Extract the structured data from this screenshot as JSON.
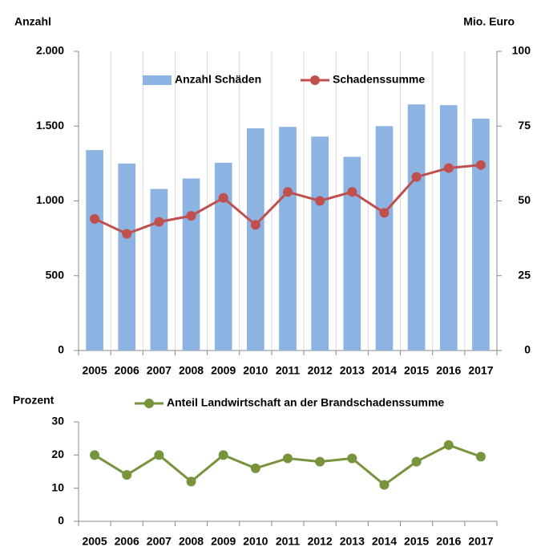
{
  "chart_data": [
    {
      "type": "bar",
      "ylabel": "Anzahl",
      "y2label": "Mio. Euro",
      "categories": [
        "2005",
        "2006",
        "2007",
        "2008",
        "2009",
        "2010",
        "2011",
        "2012",
        "2013",
        "2014",
        "2015",
        "2016",
        "2017"
      ],
      "series": [
        {
          "name": "Anzahl Schäden",
          "color": "#8db3e2",
          "values": [
            1340,
            1250,
            1080,
            1150,
            1255,
            1485,
            1495,
            1430,
            1295,
            1500,
            1645,
            1640,
            1550
          ]
        },
        {
          "name": "Schadenssumme",
          "type": "line",
          "axis": "y2",
          "color": "#c0504d",
          "values": [
            44,
            39,
            43,
            45,
            51,
            42,
            53,
            50,
            53,
            46,
            58,
            61,
            62
          ]
        }
      ],
      "ylim": [
        0,
        2000
      ],
      "yticks": [
        0,
        500,
        {
          "value": 1000,
          "label": "1.000"
        },
        {
          "value": 1500,
          "label": "1.500"
        },
        {
          "value": 2000,
          "label": "2.000"
        }
      ],
      "y2lim": [
        0,
        100
      ],
      "y2ticks": [
        0,
        25,
        50,
        75,
        100
      ]
    },
    {
      "type": "line",
      "ylabel": "Prozent",
      "categories": [
        "2005",
        "2006",
        "2007",
        "2008",
        "2009",
        "2010",
        "2011",
        "2012",
        "2013",
        "2014",
        "2015",
        "2016",
        "2017"
      ],
      "series": [
        {
          "name": "Anteil Landwirtschaft an der Brandschadenssumme",
          "color": "#77933c",
          "values": [
            20,
            14,
            20,
            12,
            20,
            16,
            19,
            18,
            19,
            11,
            18,
            23,
            19.5
          ]
        }
      ],
      "ylim": [
        0,
        30
      ],
      "yticks": [
        0,
        10,
        20,
        30
      ]
    }
  ]
}
